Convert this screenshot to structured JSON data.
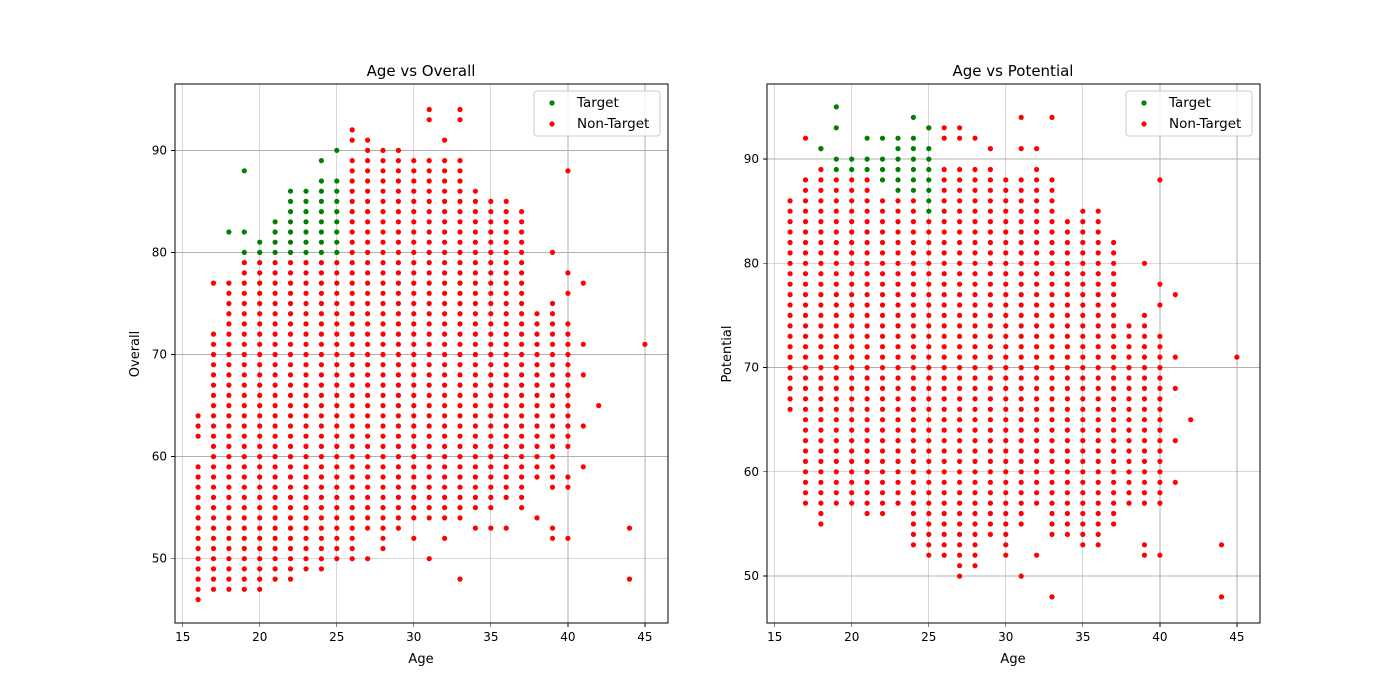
{
  "chart_data": [
    {
      "type": "scatter",
      "title": "Age vs Overall",
      "xlabel": "Age",
      "ylabel": "Overall",
      "xlim": [
        14.5,
        46.5
      ],
      "ylim": [
        43.7,
        96.5
      ],
      "xticks": [
        15,
        20,
        25,
        30,
        35,
        40,
        45
      ],
      "yticks": [
        50,
        60,
        70,
        80,
        90
      ],
      "grid": true,
      "legend_position": "top-right",
      "series": [
        {
          "name": "Target",
          "color": "#008000",
          "points": [
            [
              18,
              82
            ],
            [
              19,
              88
            ],
            [
              19,
              82
            ],
            [
              19,
              80
            ],
            [
              20,
              80
            ],
            [
              20,
              81
            ],
            [
              21,
              80
            ],
            [
              21,
              81
            ],
            [
              21,
              82
            ],
            [
              21,
              83
            ],
            [
              22,
              80
            ],
            [
              22,
              81
            ],
            [
              22,
              82
            ],
            [
              22,
              83
            ],
            [
              22,
              84
            ],
            [
              22,
              85
            ],
            [
              22,
              86
            ],
            [
              23,
              80
            ],
            [
              23,
              81
            ],
            [
              23,
              82
            ],
            [
              23,
              83
            ],
            [
              23,
              84
            ],
            [
              23,
              85
            ],
            [
              23,
              86
            ],
            [
              24,
              80
            ],
            [
              24,
              81
            ],
            [
              24,
              82
            ],
            [
              24,
              83
            ],
            [
              24,
              84
            ],
            [
              24,
              85
            ],
            [
              24,
              86
            ],
            [
              24,
              87
            ],
            [
              24,
              89
            ],
            [
              25,
              80
            ],
            [
              25,
              81
            ],
            [
              25,
              82
            ],
            [
              25,
              83
            ],
            [
              25,
              84
            ],
            [
              25,
              85
            ],
            [
              25,
              86
            ],
            [
              25,
              87
            ],
            [
              25,
              90
            ]
          ]
        },
        {
          "name": "Non-Target",
          "color": "#ff0000",
          "ranges": [
            [
              16,
              46,
              59
            ],
            [
              17,
              47,
              72
            ],
            [
              18,
              47,
              77
            ],
            [
              19,
              47,
              79
            ],
            [
              20,
              47,
              79
            ],
            [
              21,
              48,
              79
            ],
            [
              22,
              48,
              79
            ],
            [
              23,
              49,
              79
            ],
            [
              24,
              49,
              79
            ],
            [
              25,
              50,
              79
            ],
            [
              26,
              51,
              89
            ],
            [
              27,
              53,
              90
            ],
            [
              28,
              53,
              90
            ],
            [
              29,
              53,
              90
            ],
            [
              30,
              54,
              89
            ],
            [
              31,
              54,
              89
            ],
            [
              32,
              54,
              89
            ],
            [
              33,
              54,
              89
            ],
            [
              34,
              55,
              86
            ],
            [
              35,
              55,
              85
            ],
            [
              36,
              56,
              85
            ],
            [
              37,
              56,
              84
            ],
            [
              38,
              58,
              74
            ],
            [
              39,
              58,
              75
            ],
            [
              40,
              61,
              73
            ]
          ],
          "points": [
            [
              16,
              62
            ],
            [
              16,
              63
            ],
            [
              16,
              64
            ],
            [
              17,
              77
            ],
            [
              18,
              73
            ],
            [
              18,
              75
            ],
            [
              26,
              91
            ],
            [
              26,
              92
            ],
            [
              26,
              50
            ],
            [
              27,
              91
            ],
            [
              27,
              50
            ],
            [
              28,
              51
            ],
            [
              28,
              52
            ],
            [
              30,
              52
            ],
            [
              31,
              93
            ],
            [
              31,
              94
            ],
            [
              31,
              50
            ],
            [
              32,
              91
            ],
            [
              32,
              52
            ],
            [
              33,
              93
            ],
            [
              33,
              94
            ],
            [
              33,
              48
            ],
            [
              34,
              53
            ],
            [
              35,
              53
            ],
            [
              36,
              53
            ],
            [
              37,
              55
            ],
            [
              38,
              54
            ],
            [
              39,
              80
            ],
            [
              39,
              52
            ],
            [
              39,
              53
            ],
            [
              39,
              57
            ],
            [
              40,
              88
            ],
            [
              40,
              78
            ],
            [
              40,
              76
            ],
            [
              40,
              52
            ],
            [
              40,
              57
            ],
            [
              40,
              58
            ],
            [
              41,
              77
            ],
            [
              41,
              71
            ],
            [
              41,
              68
            ],
            [
              41,
              63
            ],
            [
              41,
              59
            ],
            [
              42,
              65
            ],
            [
              44,
              53
            ],
            [
              44,
              48
            ],
            [
              45,
              71
            ]
          ]
        }
      ]
    },
    {
      "type": "scatter",
      "title": "Age vs Potential",
      "xlabel": "Age",
      "ylabel": "Potential",
      "xlim": [
        14.5,
        46.5
      ],
      "ylim": [
        45.5,
        97.2
      ],
      "xticks": [
        15,
        20,
        25,
        30,
        35,
        40,
        45
      ],
      "yticks": [
        50,
        60,
        70,
        80,
        90
      ],
      "grid": true,
      "legend_position": "top-right",
      "series": [
        {
          "name": "Target",
          "color": "#008000",
          "points": [
            [
              18,
              91
            ],
            [
              19,
              95
            ],
            [
              19,
              93
            ],
            [
              19,
              90
            ],
            [
              19,
              89
            ],
            [
              20,
              90
            ],
            [
              20,
              89
            ],
            [
              21,
              92
            ],
            [
              21,
              90
            ],
            [
              21,
              89
            ],
            [
              22,
              92
            ],
            [
              22,
              90
            ],
            [
              22,
              89
            ],
            [
              22,
              88
            ],
            [
              23,
              92
            ],
            [
              23,
              91
            ],
            [
              23,
              90
            ],
            [
              23,
              89
            ],
            [
              23,
              88
            ],
            [
              23,
              87
            ],
            [
              24,
              94
            ],
            [
              24,
              92
            ],
            [
              24,
              91
            ],
            [
              24,
              90
            ],
            [
              24,
              89
            ],
            [
              24,
              88
            ],
            [
              24,
              87
            ],
            [
              25,
              93
            ],
            [
              25,
              91
            ],
            [
              25,
              90
            ],
            [
              25,
              89
            ],
            [
              25,
              88
            ],
            [
              25,
              87
            ],
            [
              25,
              86
            ],
            [
              25,
              85
            ]
          ]
        },
        {
          "name": "Non-Target",
          "color": "#ff0000",
          "ranges": [
            [
              16,
              66,
              86
            ],
            [
              17,
              57,
              88
            ],
            [
              18,
              55,
              89
            ],
            [
              19,
              57,
              88
            ],
            [
              20,
              57,
              88
            ],
            [
              21,
              56,
              88
            ],
            [
              22,
              56,
              86
            ],
            [
              23,
              57,
              86
            ],
            [
              24,
              53,
              86
            ],
            [
              25,
              52,
              84
            ],
            [
              26,
              52,
              89
            ],
            [
              27,
              50,
              89
            ],
            [
              28,
              51,
              89
            ],
            [
              29,
              54,
              89
            ],
            [
              30,
              52,
              88
            ],
            [
              31,
              55,
              88
            ],
            [
              32,
              57,
              89
            ],
            [
              33,
              54,
              88
            ],
            [
              34,
              54,
              84
            ],
            [
              35,
              53,
              85
            ],
            [
              36,
              53,
              85
            ],
            [
              37,
              55,
              82
            ],
            [
              38,
              57,
              74
            ],
            [
              39,
              57,
              75
            ],
            [
              40,
              57,
              73
            ]
          ],
          "points": [
            [
              16,
              83
            ],
            [
              17,
              92
            ],
            [
              18,
              91
            ],
            [
              25,
              93
            ],
            [
              26,
              93
            ],
            [
              26,
              92
            ],
            [
              27,
              93
            ],
            [
              27,
              92
            ],
            [
              28,
              92
            ],
            [
              29,
              91
            ],
            [
              31,
              94
            ],
            [
              31,
              91
            ],
            [
              31,
              50
            ],
            [
              32,
              91
            ],
            [
              32,
              52
            ],
            [
              33,
              94
            ],
            [
              33,
              48
            ],
            [
              39,
              80
            ],
            [
              39,
              52
            ],
            [
              39,
              53
            ],
            [
              39,
              57
            ],
            [
              40,
              88
            ],
            [
              40,
              78
            ],
            [
              40,
              76
            ],
            [
              40,
              52
            ],
            [
              40,
              57
            ],
            [
              40,
              58
            ],
            [
              41,
              77
            ],
            [
              41,
              71
            ],
            [
              41,
              68
            ],
            [
              41,
              63
            ],
            [
              41,
              59
            ],
            [
              42,
              65
            ],
            [
              44,
              53
            ],
            [
              44,
              48
            ],
            [
              45,
              71
            ]
          ]
        }
      ]
    }
  ]
}
